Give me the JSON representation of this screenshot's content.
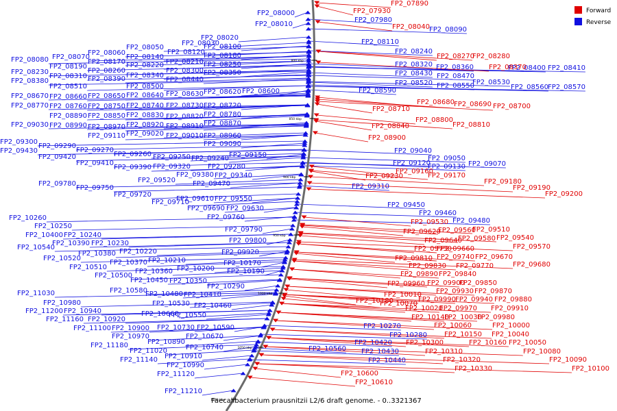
{
  "caption": "Faecalibacterium prausnitzii L2/6 draft genome. - 0..3321367",
  "colors": {
    "forward": "#e00000",
    "reverse": "#1010e0",
    "backbone": "#6a6a6a"
  },
  "legend": [
    {
      "label": "Forward",
      "color": "#e00000"
    },
    {
      "label": "Reverse",
      "color": "#1010e0"
    }
  ],
  "ticks": [
    "800 kbp",
    "850 kbp",
    "900 kbp",
    "950 kbp",
    "1000 kbp",
    "1050 kbp",
    "1100 kbp"
  ],
  "forward_genes": [
    [
      "FP2_07890",
      570,
      8
    ],
    [
      "FP2_07930",
      515,
      19
    ],
    [
      "FP2_08040",
      572,
      42
    ],
    [
      "FP2_08270",
      637,
      85
    ],
    [
      "FP2_08280",
      689,
      85
    ],
    [
      "FP2_08370",
      713,
      101
    ],
    [
      "FP2_08680",
      608,
      152
    ],
    [
      "FP2_08690",
      662,
      155
    ],
    [
      "FP2_08700",
      719,
      158
    ],
    [
      "FP2_08710",
      543,
      162
    ],
    [
      "FP2_08800",
      606,
      178
    ],
    [
      "FP2_08840",
      542,
      187
    ],
    [
      "FP2_08810",
      660,
      185
    ],
    [
      "FP2_08900",
      537,
      204
    ],
    [
      "FP2_09160",
      577,
      253
    ],
    [
      "FP2_09170",
      624,
      259
    ],
    [
      "FP2_09230",
      533,
      260
    ],
    [
      "FP2_09180",
      706,
      268
    ],
    [
      "FP2_09190",
      748,
      277
    ],
    [
      "FP2_09200",
      795,
      286
    ],
    [
      "FP2_09530",
      599,
      327
    ],
    [
      "FP2_09560",
      639,
      339
    ],
    [
      "FP2_09510",
      689,
      338
    ],
    [
      "FP2_09620",
      588,
      341
    ],
    [
      "FP2_09580",
      668,
      351
    ],
    [
      "FP2_09540",
      724,
      350
    ],
    [
      "FP2_09640",
      619,
      354
    ],
    [
      "FP2_09570",
      748,
      363
    ],
    [
      "FP2_09730",
      604,
      366
    ],
    [
      "FP2_09660",
      637,
      366
    ],
    [
      "FP2_09740",
      637,
      378
    ],
    [
      "FP2_09670",
      693,
      378
    ],
    [
      "FP2_09810",
      576,
      380
    ],
    [
      "FP2_09770",
      665,
      391
    ],
    [
      "FP2_09680",
      748,
      389
    ],
    [
      "FP2_09830",
      596,
      391
    ],
    [
      "FP2_09840",
      640,
      403
    ],
    [
      "FP2_09890",
      584,
      403
    ],
    [
      "FP2_09900",
      623,
      416
    ],
    [
      "FP2_09850",
      670,
      416
    ],
    [
      "FP2_09960",
      565,
      417
    ],
    [
      "FP2_09930",
      636,
      428
    ],
    [
      "FP2_09870",
      692,
      428
    ],
    [
      "FP2_10010",
      560,
      433
    ],
    [
      "FP2_10180",
      519,
      442
    ],
    [
      "FP2_09990",
      610,
      440
    ],
    [
      "FP2_09940",
      664,
      440
    ],
    [
      "FP2_09880",
      721,
      440
    ],
    [
      "FP2_10070",
      554,
      446
    ],
    [
      "FP2_10020",
      591,
      453
    ],
    [
      "FP2_09970",
      641,
      453
    ],
    [
      "FP2_09910",
      716,
      453
    ],
    [
      "FP2_09980",
      696,
      466
    ],
    [
      "FP2_10140",
      600,
      466
    ],
    [
      "FP2_10030",
      648,
      466
    ],
    [
      "FP2_10060",
      633,
      478
    ],
    [
      "FP2_10000",
      718,
      478
    ],
    [
      "FP2_10150",
      648,
      491
    ],
    [
      "FP2_10040",
      717,
      491
    ],
    [
      "FP2_10160",
      684,
      503
    ],
    [
      "FP2_10050",
      742,
      503
    ],
    [
      "FP2_10300",
      592,
      503
    ],
    [
      "FP2_10310",
      620,
      516
    ],
    [
      "FP2_10080",
      763,
      516
    ],
    [
      "FP2_10320",
      646,
      528
    ],
    [
      "FP2_10090",
      801,
      528
    ],
    [
      "FP2_10330",
      663,
      541
    ],
    [
      "FP2_10100",
      834,
      541
    ],
    [
      "FP2_10600",
      497,
      548
    ],
    [
      "FP2_10610",
      518,
      561
    ]
  ],
  "reverse_genes": [
    [
      "FP2_08000",
      375,
      22
    ],
    [
      "FP2_08010",
      372,
      38
    ],
    [
      "FP2_07980",
      517,
      32
    ],
    [
      "FP2_08090",
      626,
      46
    ],
    [
      "FP2_08020",
      293,
      58
    ],
    [
      "FP2_08030",
      265,
      66
    ],
    [
      "FP2_08100",
      297,
      71
    ],
    [
      "FP2_08050",
      184,
      72
    ],
    [
      "FP2_08110",
      527,
      64
    ],
    [
      "FP2_08060",
      128,
      80
    ],
    [
      "FP2_08120",
      244,
      79
    ],
    [
      "FP2_08180",
      297,
      84
    ],
    [
      "FP2_08240",
      576,
      78
    ],
    [
      "FP2_08070",
      76,
      86
    ],
    [
      "FP2_08080",
      16,
      90
    ],
    [
      "FP2_08140",
      184,
      86
    ],
    [
      "FP2_08170",
      128,
      93
    ],
    [
      "FP2_08210",
      242,
      93
    ],
    [
      "FP2_08250",
      297,
      97
    ],
    [
      "FP2_08190",
      72,
      100
    ],
    [
      "FP2_08220",
      184,
      98
    ],
    [
      "FP2_08260",
      128,
      106
    ],
    [
      "FP2_08320",
      576,
      97
    ],
    [
      "FP2_08360",
      636,
      101
    ],
    [
      "FP2_08300",
      242,
      106
    ],
    [
      "FP2_08410",
      799,
      102
    ],
    [
      "FP2_08400",
      741,
      102
    ],
    [
      "FP2_08230",
      16,
      108
    ],
    [
      "FP2_08350",
      297,
      109
    ],
    [
      "FP2_08340",
      184,
      113
    ],
    [
      "FP2_08430",
      576,
      110
    ],
    [
      "FP2_08470",
      637,
      114
    ],
    [
      "FP2_08310",
      72,
      114
    ],
    [
      "FP2_08390",
      128,
      118
    ],
    [
      "FP2_08440",
      242,
      119
    ],
    [
      "FP2_08380",
      16,
      121
    ],
    [
      "FP2_08520",
      576,
      124
    ],
    [
      "FP2_08530",
      689,
      123
    ],
    [
      "FP2_08550",
      637,
      128
    ],
    [
      "FP2_08500",
      184,
      129
    ],
    [
      "FP2_08570",
      799,
      130
    ],
    [
      "FP2_08560",
      745,
      130
    ],
    [
      "FP2_08510",
      72,
      129
    ],
    [
      "FP2_08590",
      523,
      135
    ],
    [
      "FP2_08600",
      353,
      136
    ],
    [
      "FP2_08620",
      297,
      137
    ],
    [
      "FP2_08630",
      242,
      140
    ],
    [
      "FP2_08670",
      16,
      143
    ],
    [
      "FP2_08660",
      72,
      144
    ],
    [
      "FP2_08650",
      128,
      143
    ],
    [
      "FP2_08640",
      184,
      142
    ],
    [
      "FP2_08720",
      297,
      157
    ],
    [
      "FP2_08730",
      242,
      157
    ],
    [
      "FP2_08740",
      184,
      157
    ],
    [
      "FP2_08750",
      128,
      158
    ],
    [
      "FP2_08770",
      16,
      157
    ],
    [
      "FP2_08760",
      72,
      158
    ],
    [
      "FP2_08780",
      297,
      170
    ],
    [
      "FP2_08820",
      242,
      173
    ],
    [
      "FP2_08830",
      184,
      171
    ],
    [
      "FP2_08850",
      128,
      172
    ],
    [
      "FP2_08890",
      72,
      172
    ],
    [
      "FP2_08870",
      297,
      183
    ],
    [
      "FP2_08910",
      242,
      187
    ],
    [
      "FP2_08920",
      184,
      185
    ],
    [
      "FP2_08970",
      128,
      188
    ],
    [
      "FP2_08990",
      72,
      186
    ],
    [
      "FP2_09030",
      16,
      185
    ],
    [
      "FP2_09020",
      184,
      198
    ],
    [
      "FP2_09010",
      242,
      201
    ],
    [
      "FP2_08960",
      297,
      201
    ],
    [
      "FP2_09110",
      128,
      201
    ],
    [
      "FP2_09090",
      297,
      213
    ],
    [
      "FP2_09300",
      0,
      210
    ],
    [
      "FP2_09290",
      56,
      216
    ],
    [
      "FP2_09430",
      0,
      223
    ],
    [
      "FP2_09270",
      111,
      222
    ],
    [
      "FP2_09040",
      575,
      223
    ],
    [
      "FP2_09260",
      166,
      228
    ],
    [
      "FP2_09150",
      334,
      229
    ],
    [
      "FP2_09420",
      56,
      232
    ],
    [
      "FP2_09250",
      223,
      232
    ],
    [
      "FP2_09240",
      279,
      234
    ],
    [
      "FP2_09050",
      624,
      234
    ],
    [
      "FP2_09410",
      111,
      241
    ],
    [
      "FP2_09120",
      573,
      241
    ],
    [
      "FP2_09070",
      683,
      242
    ],
    [
      "FP2_09130",
      624,
      246
    ],
    [
      "FP2_09280",
      303,
      246
    ],
    [
      "FP2_09390",
      166,
      247
    ],
    [
      "FP2_09320",
      223,
      246
    ],
    [
      "FP2_09380",
      257,
      258
    ],
    [
      "FP2_09340",
      313,
      259
    ],
    [
      "FP2_09520",
      201,
      266
    ],
    [
      "FP2_09470",
      281,
      271
    ],
    [
      "FP2_09780",
      56,
      271
    ],
    [
      "FP2_09310",
      513,
      275
    ],
    [
      "FP2_09750",
      111,
      277
    ],
    [
      "FP2_09720",
      166,
      287
    ],
    [
      "FP2_09450",
      565,
      302
    ],
    [
      "FP2_09550",
      313,
      293
    ],
    [
      "FP2_09610",
      257,
      293
    ],
    [
      "FP2_09710",
      221,
      298
    ],
    [
      "FP2_09690",
      273,
      307
    ],
    [
      "FP2_09630",
      330,
      307
    ],
    [
      "FP2_09460",
      611,
      314
    ],
    [
      "FP2_09760",
      302,
      320
    ],
    [
      "FP2_09480",
      660,
      325
    ],
    [
      "FP2_10260",
      13,
      321
    ],
    [
      "FP2_10250",
      50,
      333
    ],
    [
      "FP2_09790",
      328,
      338
    ],
    [
      "FP2_10400",
      37,
      346
    ],
    [
      "FP2_10240",
      93,
      346
    ],
    [
      "FP2_09800",
      334,
      354
    ],
    [
      "FP2_10390",
      76,
      358
    ],
    [
      "FP2_10230",
      133,
      358
    ],
    [
      "FP2_10540",
      25,
      364
    ],
    [
      "FP2_10220",
      174,
      370
    ],
    [
      "FP2_10380",
      114,
      373
    ],
    [
      "FP2_09920",
      323,
      371
    ],
    [
      "FP2_10520",
      63,
      380
    ],
    [
      "FP2_10370",
      160,
      386
    ],
    [
      "FP2_10210",
      216,
      383
    ],
    [
      "FP2_10170",
      326,
      387
    ],
    [
      "FP2_10510",
      101,
      393
    ],
    [
      "FP2_10200",
      258,
      395
    ],
    [
      "FP2_10190",
      331,
      399
    ],
    [
      "FP2_10360",
      197,
      399
    ],
    [
      "FP2_10500",
      138,
      405
    ],
    [
      "FP2_10450",
      190,
      412
    ],
    [
      "FP2_10350",
      247,
      413
    ],
    [
      "FP2_10290",
      302,
      421
    ],
    [
      "FP2_10580",
      160,
      427
    ],
    [
      "FP2_10480",
      212,
      432
    ],
    [
      "FP2_10410",
      268,
      433
    ],
    [
      "FP2_11030",
      25,
      431
    ],
    [
      "FP2_10530",
      222,
      446
    ],
    [
      "FP2_10460",
      283,
      449
    ],
    [
      "FP2_10980",
      63,
      445
    ],
    [
      "FP2_10940",
      93,
      457
    ],
    [
      "FP2_11200",
      37,
      457
    ],
    [
      "FP2_10660",
      206,
      461
    ],
    [
      "FP2_10550",
      246,
      463
    ],
    [
      "FP2_11160",
      67,
      469
    ],
    [
      "FP2_10920",
      128,
      469
    ],
    [
      "FP2_10590",
      287,
      481
    ],
    [
      "FP2_11100",
      107,
      482
    ],
    [
      "FP2_10900",
      163,
      482
    ],
    [
      "FP2_10730",
      229,
      481
    ],
    [
      "FP2_10270",
      530,
      479
    ],
    [
      "FP2_10670",
      271,
      494
    ],
    [
      "FP2_10970",
      163,
      494
    ],
    [
      "FP2_10280",
      568,
      492
    ],
    [
      "FP2_11180",
      132,
      507
    ],
    [
      "FP2_10890",
      215,
      502
    ],
    [
      "FP2_10420",
      517,
      503
    ],
    [
      "FP2_10740",
      271,
      510
    ],
    [
      "FP2_10560",
      450,
      512
    ],
    [
      "FP2_10430",
      527,
      516
    ],
    [
      "FP2_11020",
      189,
      515
    ],
    [
      "FP2_10910",
      240,
      523
    ],
    [
      "FP2_10440",
      537,
      529
    ],
    [
      "FP2_11140",
      175,
      528
    ],
    [
      "FP2_10990",
      243,
      536
    ],
    [
      "FP2_11120",
      229,
      549
    ],
    [
      "FP2_11210",
      240,
      574
    ]
  ]
}
